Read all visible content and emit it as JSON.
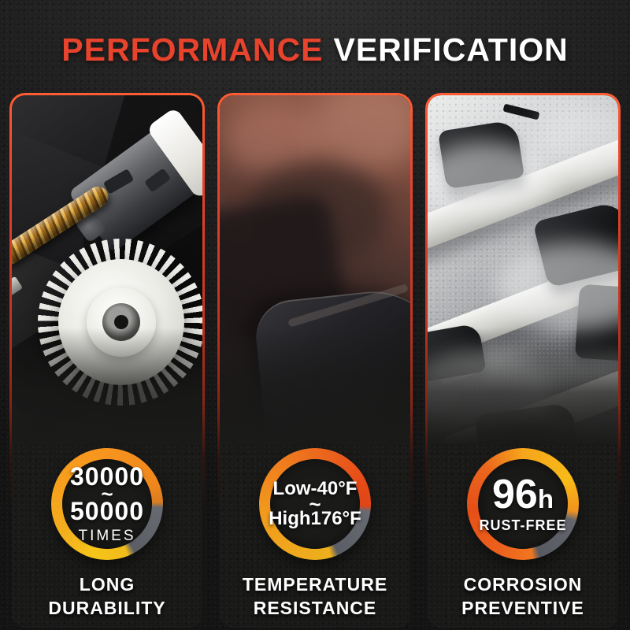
{
  "title": {
    "word1": "PERFORMANCE",
    "word2": "VERIFICATION"
  },
  "panels": [
    {
      "name": "long-durability",
      "badge": {
        "line1": "30000",
        "tilde": "~",
        "line2": "50000",
        "caption": "TIMES"
      },
      "label": {
        "line1": "LONG",
        "line2": "DURABILITY"
      }
    },
    {
      "name": "temperature-resistance",
      "badge": {
        "line1": "Low-40°F",
        "tilde": "~",
        "line2": "High176°F"
      },
      "label": {
        "line1": "TEMPERATURE",
        "line2": "RESISTANCE"
      }
    },
    {
      "name": "corrosion-preventive",
      "badge": {
        "value": "96",
        "unit": "h",
        "caption": "RUST-FREE"
      },
      "label": {
        "line1": "CORROSION",
        "line2": "PREVENTIVE"
      }
    }
  ],
  "colors": {
    "accent_red": "#e8432c",
    "ring_orange": "#f7941e",
    "ring_red_orange": "#e64716",
    "ring_yellow": "#f6c51a",
    "ring_gray": "#63656c",
    "page_background": "#1b1b1b",
    "text_white": "#ffffff"
  }
}
